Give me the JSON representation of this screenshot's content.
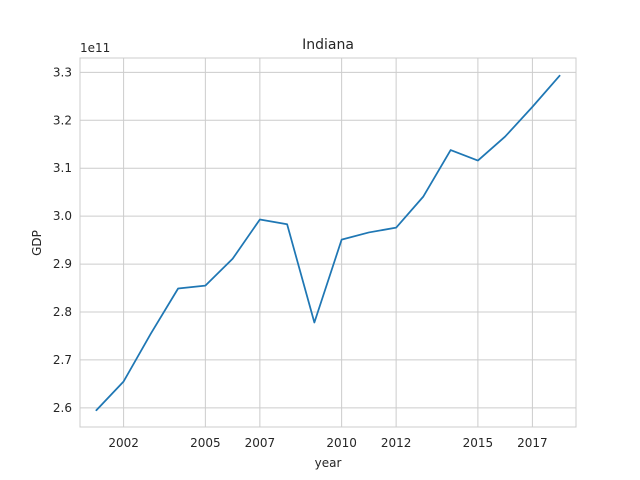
{
  "chart_data": {
    "type": "line",
    "title": "Indiana",
    "xlabel": "year",
    "ylabel": "GDP",
    "y_offset_label": "1e11",
    "xlim": [
      2000.4,
      2018.6
    ],
    "ylim": [
      2.56,
      3.33
    ],
    "xticks": [
      2002,
      2005,
      2007,
      2010,
      2012,
      2015,
      2017
    ],
    "yticks": [
      2.6,
      2.7,
      2.8,
      2.9,
      3.0,
      3.1,
      3.2,
      3.3
    ],
    "ytick_labels": [
      "2.6",
      "2.7",
      "2.8",
      "2.9",
      "3.0",
      "3.1",
      "3.2",
      "3.3"
    ],
    "grid": true,
    "series": [
      {
        "color": "#1f77b4",
        "x": [
          2001,
          2002,
          2003,
          2004,
          2005,
          2006,
          2007,
          2008,
          2009,
          2010,
          2011,
          2012,
          2013,
          2014,
          2015,
          2016,
          2017,
          2018
        ],
        "y": [
          2.595,
          2.655,
          2.755,
          2.849,
          2.855,
          2.911,
          2.993,
          2.983,
          2.778,
          2.951,
          2.966,
          2.976,
          3.041,
          3.138,
          3.116,
          3.166,
          3.228,
          3.293
        ]
      }
    ]
  }
}
